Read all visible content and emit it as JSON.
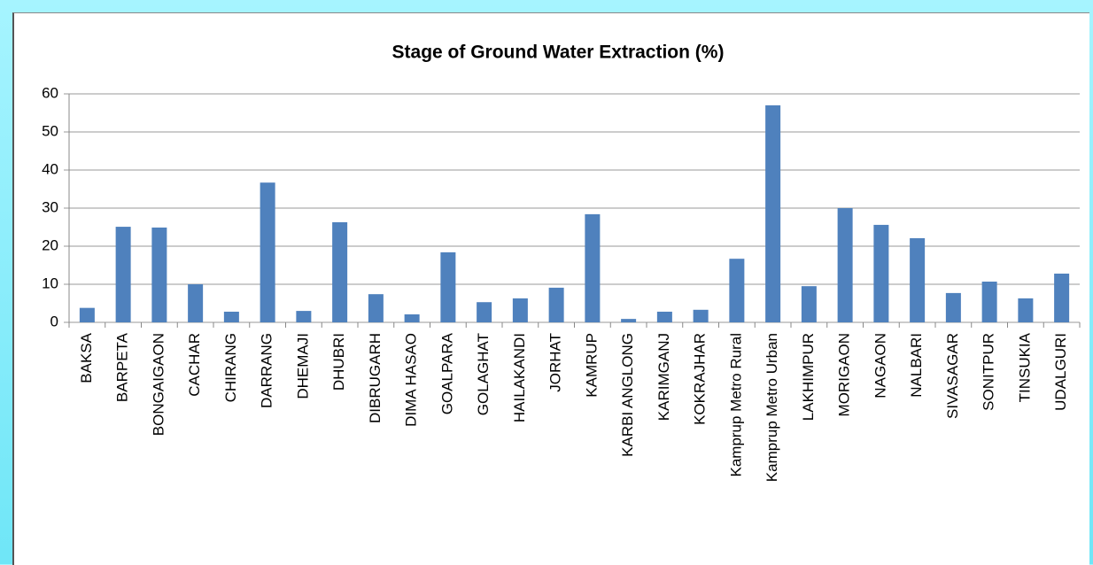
{
  "chart_data": {
    "type": "bar",
    "title": "Stage of Ground Water Extraction (%)",
    "categories": [
      "BAKSA",
      "BARPETA",
      "BONGAIGAON",
      "CACHAR",
      "CHIRANG",
      "DARRANG",
      "DHEMAJI",
      "DHUBRI",
      "DIBRUGARH",
      "DIMA HASAO",
      "GOALPARA",
      "GOLAGHAT",
      "HAILAKANDI",
      "JORHAT",
      "KAMRUP",
      "KARBI ANGLONG",
      "KARIMGANJ",
      "KOKRAJHAR",
      "Kamprup Metro Rural",
      "Kamprup Metro Urban",
      "LAKHIMPUR",
      "MORIGAON",
      "NAGAON",
      "NALBARI",
      "SIVASAGAR",
      "SONITPUR",
      "TINSUKIA",
      "UDALGURI"
    ],
    "values": [
      3.8,
      25.1,
      24.9,
      10,
      2.8,
      36.7,
      3,
      26.3,
      7.4,
      2.1,
      18.4,
      5.3,
      6.3,
      9.1,
      28.4,
      0.9,
      2.8,
      3.3,
      16.7,
      57,
      9.5,
      30,
      25.6,
      22.1,
      7.7,
      10.7,
      6.3,
      12.8
    ],
    "color": "#4f81bd",
    "ylim": [
      0,
      60
    ],
    "yticks": [
      0,
      10,
      20,
      30,
      40,
      50,
      60
    ],
    "grid": true
  }
}
